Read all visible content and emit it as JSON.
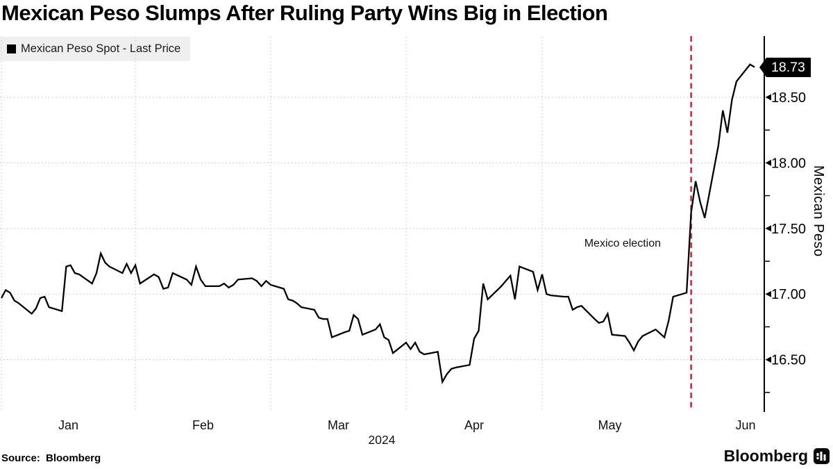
{
  "header": {
    "title": "Mexican Peso Slumps After Ruling Party Wins Big in Election"
  },
  "legend": {
    "label": "Mexican Peso Spot - Last Price",
    "swatch_color": "#000000"
  },
  "footer": {
    "source_label": "Source: Bloomberg",
    "brand": "Bloomberg"
  },
  "chart_data": {
    "type": "line",
    "title": "Mexican Peso Slumps After Ruling Party Wins Big in Election",
    "series_name": "Mexican Peso Spot - Last Price",
    "xlabel": "",
    "ylabel": "Mexican Peso",
    "x_axis": {
      "months": [
        "Jan",
        "Feb",
        "Mar",
        "Apr",
        "May",
        "Jun"
      ],
      "year": "2024"
    },
    "y_ticks": [
      {
        "value": 18.5,
        "label": "18.50"
      },
      {
        "value": 18.0,
        "label": "18.00"
      },
      {
        "value": 17.5,
        "label": "17.50"
      },
      {
        "value": 17.0,
        "label": "17.00"
      },
      {
        "value": 16.5,
        "label": "16.50"
      }
    ],
    "y_minor_ticks": [
      18.25,
      17.75,
      17.25,
      16.75,
      16.25
    ],
    "ylim": [
      16.1,
      18.95
    ],
    "grid": true,
    "legend_position": "top-left",
    "line_color": "#000000",
    "grid_color": "#c3c3c3",
    "last_price": 18.73,
    "last_price_label": "18.73",
    "annotation": {
      "label": "Mexico election",
      "month": 6,
      "day": 4,
      "line_color": "#cd2433"
    },
    "points": [
      [
        1,
        1,
        16.97
      ],
      [
        1,
        2,
        17.03
      ],
      [
        1,
        3,
        17.01
      ],
      [
        1,
        4,
        16.95
      ],
      [
        1,
        5,
        16.93
      ],
      [
        1,
        8,
        16.85
      ],
      [
        1,
        9,
        16.89
      ],
      [
        1,
        10,
        16.97
      ],
      [
        1,
        11,
        16.98
      ],
      [
        1,
        12,
        16.9
      ],
      [
        1,
        15,
        16.87
      ],
      [
        1,
        16,
        17.21
      ],
      [
        1,
        17,
        17.22
      ],
      [
        1,
        18,
        17.16
      ],
      [
        1,
        19,
        17.15
      ],
      [
        1,
        22,
        17.08
      ],
      [
        1,
        23,
        17.16
      ],
      [
        1,
        24,
        17.31
      ],
      [
        1,
        25,
        17.24
      ],
      [
        1,
        26,
        17.21
      ],
      [
        1,
        29,
        17.16
      ],
      [
        1,
        30,
        17.23
      ],
      [
        1,
        31,
        17.16
      ],
      [
        2,
        1,
        17.22
      ],
      [
        2,
        2,
        17.08
      ],
      [
        2,
        5,
        17.15
      ],
      [
        2,
        6,
        17.13
      ],
      [
        2,
        7,
        17.04
      ],
      [
        2,
        8,
        17.05
      ],
      [
        2,
        9,
        17.16
      ],
      [
        2,
        12,
        17.11
      ],
      [
        2,
        13,
        17.07
      ],
      [
        2,
        14,
        17.21
      ],
      [
        2,
        15,
        17.11
      ],
      [
        2,
        16,
        17.06
      ],
      [
        2,
        19,
        17.06
      ],
      [
        2,
        20,
        17.08
      ],
      [
        2,
        21,
        17.05
      ],
      [
        2,
        22,
        17.07
      ],
      [
        2,
        23,
        17.11
      ],
      [
        2,
        26,
        17.12
      ],
      [
        2,
        27,
        17.1
      ],
      [
        2,
        28,
        17.06
      ],
      [
        2,
        29,
        17.1
      ],
      [
        3,
        1,
        17.07
      ],
      [
        3,
        4,
        17.04
      ],
      [
        3,
        5,
        16.96
      ],
      [
        3,
        6,
        16.95
      ],
      [
        3,
        7,
        16.93
      ],
      [
        3,
        8,
        16.9
      ],
      [
        3,
        11,
        16.88
      ],
      [
        3,
        12,
        16.82
      ],
      [
        3,
        13,
        16.81
      ],
      [
        3,
        14,
        16.81
      ],
      [
        3,
        15,
        16.67
      ],
      [
        3,
        18,
        16.71
      ],
      [
        3,
        19,
        16.72
      ],
      [
        3,
        20,
        16.84
      ],
      [
        3,
        21,
        16.81
      ],
      [
        3,
        22,
        16.69
      ],
      [
        3,
        25,
        16.73
      ],
      [
        3,
        26,
        16.77
      ],
      [
        3,
        27,
        16.67
      ],
      [
        3,
        28,
        16.65
      ],
      [
        3,
        29,
        16.55
      ],
      [
        4,
        1,
        16.63
      ],
      [
        4,
        2,
        16.58
      ],
      [
        4,
        3,
        16.63
      ],
      [
        4,
        4,
        16.56
      ],
      [
        4,
        5,
        16.54
      ],
      [
        4,
        8,
        16.56
      ],
      [
        4,
        9,
        16.33
      ],
      [
        4,
        10,
        16.39
      ],
      [
        4,
        11,
        16.43
      ],
      [
        4,
        12,
        16.44
      ],
      [
        4,
        15,
        16.46
      ],
      [
        4,
        16,
        16.66
      ],
      [
        4,
        17,
        16.72
      ],
      [
        4,
        18,
        17.08
      ],
      [
        4,
        19,
        16.96
      ],
      [
        4,
        22,
        17.06
      ],
      [
        4,
        23,
        17.1
      ],
      [
        4,
        24,
        17.14
      ],
      [
        4,
        25,
        16.96
      ],
      [
        4,
        26,
        17.21
      ],
      [
        4,
        29,
        17.17
      ],
      [
        4,
        30,
        17.03
      ],
      [
        5,
        1,
        17.15
      ],
      [
        5,
        2,
        17.0
      ],
      [
        5,
        3,
        16.99
      ],
      [
        5,
        6,
        16.98
      ],
      [
        5,
        7,
        16.98
      ],
      [
        5,
        8,
        16.88
      ],
      [
        5,
        9,
        16.9
      ],
      [
        5,
        10,
        16.91
      ],
      [
        5,
        13,
        16.81
      ],
      [
        5,
        14,
        16.78
      ],
      [
        5,
        15,
        16.79
      ],
      [
        5,
        16,
        16.85
      ],
      [
        5,
        17,
        16.69
      ],
      [
        5,
        20,
        16.68
      ],
      [
        5,
        21,
        16.63
      ],
      [
        5,
        22,
        16.57
      ],
      [
        5,
        23,
        16.64
      ],
      [
        5,
        24,
        16.68
      ],
      [
        5,
        27,
        16.73
      ],
      [
        5,
        28,
        16.7
      ],
      [
        5,
        29,
        16.67
      ],
      [
        5,
        30,
        16.8
      ],
      [
        5,
        31,
        16.98
      ],
      [
        6,
        3,
        17.01
      ],
      [
        6,
        4,
        17.62
      ],
      [
        6,
        5,
        17.86
      ],
      [
        6,
        6,
        17.7
      ],
      [
        6,
        7,
        17.58
      ],
      [
        6,
        10,
        18.13
      ],
      [
        6,
        11,
        18.4
      ],
      [
        6,
        12,
        18.23
      ],
      [
        6,
        13,
        18.48
      ],
      [
        6,
        14,
        18.62
      ],
      [
        6,
        17,
        18.75
      ],
      [
        6,
        18,
        18.73
      ]
    ]
  }
}
